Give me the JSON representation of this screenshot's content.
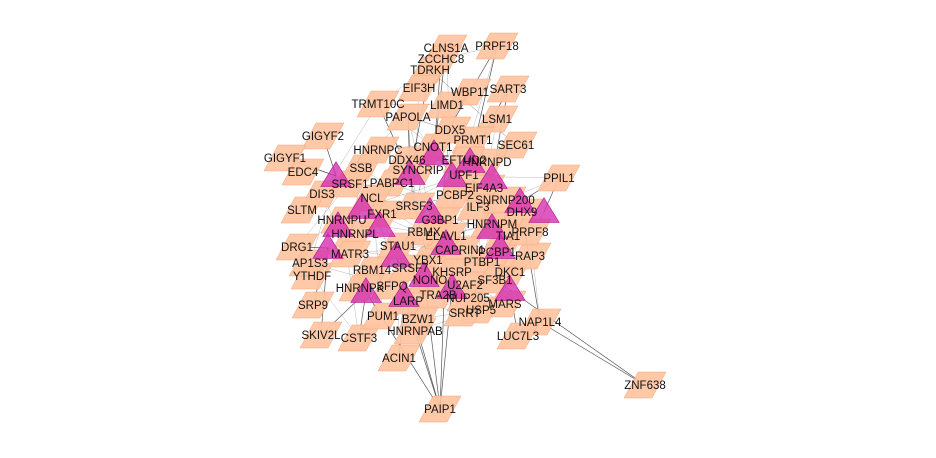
{
  "network": {
    "colors": {
      "edge": "#3a3a3a",
      "node_fill": "#ffc3a0",
      "node_fill_dark": "#f4a67c",
      "hub_fill": "#d52cb0",
      "hub_fill_dark": "#b0168e",
      "label": "#111111"
    },
    "nodes": [
      {
        "id": "CLNS1A",
        "label": "CLNS1A",
        "shape": "parallelogram"
      },
      {
        "id": "PRPF18",
        "label": "PRPF18",
        "shape": "parallelogram"
      },
      {
        "id": "ZCCHC8",
        "label": "ZCCHC8",
        "shape": "parallelogram"
      },
      {
        "id": "TDRKH",
        "label": "TDRKH",
        "shape": "parallelogram"
      },
      {
        "id": "SART3",
        "label": "SART3",
        "shape": "parallelogram"
      },
      {
        "id": "EIF3H",
        "label": "EIF3H",
        "shape": "parallelogram"
      },
      {
        "id": "WBP11",
        "label": "WBP11",
        "shape": "parallelogram"
      },
      {
        "id": "LIMD1",
        "label": "LIMD1",
        "shape": "parallelogram"
      },
      {
        "id": "TRMT10C",
        "label": "TRMT10C",
        "shape": "parallelogram"
      },
      {
        "id": "PAPOLA",
        "label": "PAPOLA",
        "shape": "parallelogram"
      },
      {
        "id": "LSM1",
        "label": "LSM1",
        "shape": "parallelogram"
      },
      {
        "id": "DDX46",
        "label": "DDX46",
        "shape": "parallelogram"
      },
      {
        "id": "GIGYF2",
        "label": "GIGYF2",
        "shape": "parallelogram"
      },
      {
        "id": "GIGYF1",
        "label": "GIGYF1",
        "shape": "parallelogram"
      },
      {
        "id": "DIS3",
        "label": "DIS3",
        "shape": "parallelogram"
      },
      {
        "id": "PPIL1",
        "label": "PPIL1",
        "shape": "parallelogram"
      },
      {
        "id": "DRG1",
        "label": "DRG1",
        "shape": "parallelogram"
      },
      {
        "id": "SRP9",
        "label": "SRP9",
        "shape": "parallelogram"
      },
      {
        "id": "SKIV2L",
        "label": "SKIV2L",
        "shape": "parallelogram"
      },
      {
        "id": "CSTF3",
        "label": "CSTF3",
        "shape": "parallelogram"
      },
      {
        "id": "ACIN1",
        "label": "ACIN1",
        "shape": "parallelogram"
      },
      {
        "id": "NAP1L4",
        "label": "NAP1L4",
        "shape": "parallelogram"
      },
      {
        "id": "LUC7L3",
        "label": "LUC7L3",
        "shape": "parallelogram"
      },
      {
        "id": "MARS",
        "label": "MARS",
        "shape": "parallelogram"
      },
      {
        "id": "USP5",
        "label": "USP5",
        "shape": "parallelogram"
      },
      {
        "id": "DKC1",
        "label": "DKC1",
        "shape": "parallelogram"
      },
      {
        "id": "PUM1",
        "label": "PUM1",
        "shape": "parallelogram"
      },
      {
        "id": "HNRNPAB",
        "label": "HNRNPAB",
        "shape": "parallelogram"
      },
      {
        "id": "SRRT",
        "label": "SRRT",
        "shape": "parallelogram"
      },
      {
        "id": "PAIP1",
        "label": "PAIP1",
        "shape": "parallelogram"
      },
      {
        "id": "ZNF638",
        "label": "ZNF638",
        "shape": "parallelogram"
      },
      {
        "id": "YTHDF",
        "label": "YTHDF",
        "shape": "parallelogram"
      },
      {
        "id": "NUP205",
        "label": "NUP205",
        "shape": "parallelogram"
      },
      {
        "id": "RAP3",
        "label": "RAP3",
        "shape": "parallelogram"
      },
      {
        "id": "HNRNPL",
        "label": "HNRNPL",
        "shape": "parallelogram"
      },
      {
        "id": "BZW1",
        "label": "BZW1",
        "shape": "parallelogram"
      },
      {
        "id": "LARP",
        "label": "LARP",
        "shape": "parallelogram"
      },
      {
        "id": "SLTM",
        "label": "SLTM",
        "shape": "parallelogram"
      },
      {
        "id": "EDC4",
        "label": "EDC4",
        "shape": "parallelogram"
      },
      {
        "id": "AP1S3",
        "label": "AP1S3",
        "shape": "parallelogram"
      },
      {
        "id": "SEC61",
        "label": "SEC61",
        "shape": "parallelogram"
      },
      {
        "id": "HNRNPD",
        "label": "HNRNPD",
        "shape": "parallelogram"
      },
      {
        "id": "UPF1",
        "label": "UPF1",
        "shape": "parallelogram"
      },
      {
        "id": "HNRNPM",
        "label": "HNRNPM",
        "shape": "parallelogram"
      },
      {
        "id": "PRMT1",
        "label": "PRMT1",
        "shape": "parallelogram"
      },
      {
        "id": "CNOT1",
        "label": "CNOT1",
        "shape": "parallelogram"
      },
      {
        "id": "DDX5",
        "label": "DDX5",
        "shape": "parallelogram"
      },
      {
        "id": "EIF4A3",
        "label": "EIF4A3",
        "shape": "parallelogram"
      },
      {
        "id": "SSB",
        "label": "SSB",
        "shape": "parallelogram"
      },
      {
        "id": "PABPC1",
        "label": "PABPC1",
        "shape": "parallelogram"
      },
      {
        "id": "NCL",
        "label": "NCL",
        "shape": "parallelogram"
      },
      {
        "id": "SRSF3",
        "label": "SRSF3",
        "shape": "parallelogram"
      },
      {
        "id": "G3BP1",
        "label": "G3BP1",
        "shape": "parallelogram"
      },
      {
        "id": "FXR1",
        "label": "FXR1",
        "shape": "parallelogram"
      },
      {
        "id": "STAU1",
        "label": "STAU1",
        "shape": "parallelogram"
      },
      {
        "id": "YBX1",
        "label": "YBX1",
        "shape": "parallelogram"
      },
      {
        "id": "CAPRIN1",
        "label": "CAPRIN1",
        "shape": "parallelogram"
      },
      {
        "id": "ELAVL1",
        "label": "ELAVL1",
        "shape": "parallelogram"
      },
      {
        "id": "TIA1",
        "label": "TIA1",
        "shape": "parallelogram"
      },
      {
        "id": "DHX9",
        "label": "DHX9",
        "shape": "parallelogram"
      },
      {
        "id": "ILF3",
        "label": "ILF3",
        "shape": "parallelogram"
      },
      {
        "id": "MATR3",
        "label": "MATR3",
        "shape": "parallelogram"
      },
      {
        "id": "RBM14",
        "label": "RBM14",
        "shape": "parallelogram"
      },
      {
        "id": "SFPQ",
        "label": "SFPQ",
        "shape": "parallelogram"
      },
      {
        "id": "NONO",
        "label": "NONO",
        "shape": "parallelogram"
      },
      {
        "id": "KHSRP",
        "label": "KHSRP",
        "shape": "parallelogram"
      },
      {
        "id": "PTBP1",
        "label": "PTBP1",
        "shape": "parallelogram"
      },
      {
        "id": "HNRNPK",
        "label": "HNRNPK",
        "shape": "parallelogram"
      },
      {
        "id": "HNRNPU",
        "label": "HNRNPU",
        "shape": "parallelogram"
      },
      {
        "id": "HNRNPC",
        "label": "HNRNPC",
        "shape": "parallelogram"
      },
      {
        "id": "SYNCRIP",
        "label": "SYNCRIP",
        "shape": "parallelogram"
      },
      {
        "id": "PCBP2",
        "label": "PCBP2",
        "shape": "parallelogram"
      },
      {
        "id": "PCBP1",
        "label": "PCBP1",
        "shape": "parallelogram"
      },
      {
        "id": "RBMX",
        "label": "RBMX",
        "shape": "parallelogram"
      },
      {
        "id": "SRSF1",
        "label": "SRSF1",
        "shape": "parallelogram"
      },
      {
        "id": "SRSF7",
        "label": "SRSF7",
        "shape": "parallelogram"
      },
      {
        "id": "TRA2B",
        "label": "TRA2B",
        "shape": "parallelogram"
      },
      {
        "id": "U2AF2",
        "label": "U2AF2",
        "shape": "parallelogram"
      },
      {
        "id": "SF3B1",
        "label": "SF3B1",
        "shape": "parallelogram"
      },
      {
        "id": "PRPF8",
        "label": "PRPF8",
        "shape": "parallelogram"
      },
      {
        "id": "SNRNP200",
        "label": "SNRNP200",
        "shape": "parallelogram"
      },
      {
        "id": "EFTUD2",
        "label": "EFTUD2",
        "shape": "parallelogram"
      },
      {
        "id": "HUB1",
        "label": "",
        "shape": "triangle"
      },
      {
        "id": "HUB2",
        "label": "",
        "shape": "triangle"
      },
      {
        "id": "HUB3",
        "label": "",
        "shape": "triangle"
      },
      {
        "id": "HUB4",
        "label": "",
        "shape": "triangle"
      },
      {
        "id": "HUB5",
        "label": "",
        "shape": "triangle"
      },
      {
        "id": "HUB6",
        "label": "",
        "shape": "triangle"
      },
      {
        "id": "HUB7",
        "label": "",
        "shape": "triangle"
      },
      {
        "id": "HUB8",
        "label": "",
        "shape": "triangle"
      },
      {
        "id": "HUB9",
        "label": "",
        "shape": "triangle"
      },
      {
        "id": "HUB10",
        "label": "",
        "shape": "triangle"
      },
      {
        "id": "HUB11",
        "label": "",
        "shape": "triangle"
      },
      {
        "id": "HUB12",
        "label": "",
        "shape": "triangle"
      },
      {
        "id": "HUB13",
        "label": "",
        "shape": "triangle"
      },
      {
        "id": "HUB14",
        "label": "",
        "shape": "triangle"
      },
      {
        "id": "HUB15",
        "label": "",
        "shape": "triangle"
      },
      {
        "id": "HUB16",
        "label": "",
        "shape": "triangle"
      },
      {
        "id": "HUB17",
        "label": "",
        "shape": "triangle"
      },
      {
        "id": "HUB18",
        "label": "",
        "shape": "triangle"
      },
      {
        "id": "HUB19",
        "label": "",
        "shape": "triangle"
      },
      {
        "id": "HUB20",
        "label": "",
        "shape": "triangle"
      },
      {
        "id": "HUB21",
        "label": "",
        "shape": "triangle"
      },
      {
        "id": "HUB22",
        "label": "",
        "shape": "triangle"
      }
    ],
    "edges": [
      [
        "PRPF18",
        "HUB3"
      ],
      [
        "PRPF18",
        "HUB5"
      ],
      [
        "SART3",
        "HUB5"
      ],
      [
        "SART3",
        "HUB7"
      ],
      [
        "CLNS1A",
        "HUB3"
      ],
      [
        "ZCCHC8",
        "HUB3"
      ],
      [
        "TDRKH",
        "HUB4"
      ],
      [
        "PAIP1",
        "HUB10"
      ],
      [
        "PAIP1",
        "HUB11"
      ],
      [
        "PAIP1",
        "HUB12"
      ],
      [
        "PAIP1",
        "HUB13"
      ],
      [
        "PAIP1",
        "HUB19"
      ],
      [
        "PAIP1",
        "HUB18"
      ],
      [
        "ZNF638",
        "HUB16"
      ],
      [
        "ZNF638",
        "NAP1L4"
      ],
      [
        "SKIV2L",
        "HUB9"
      ],
      [
        "SKIV2L",
        "HUB10"
      ],
      [
        "CSTF3",
        "HUB10"
      ],
      [
        "ACIN1",
        "HUB11"
      ],
      [
        "LUC7L3",
        "HUB16"
      ],
      [
        "NAP1L4",
        "HUB15"
      ],
      [
        "DRG1",
        "HUB9"
      ],
      [
        "SRP9",
        "HUB9"
      ],
      [
        "GIGYF1",
        "HUB1"
      ],
      [
        "GIGYF2",
        "HUB1"
      ],
      [
        "PPIL1",
        "HUB17"
      ],
      [
        "PPIL1",
        "HUB15"
      ],
      [
        "TRMT10C",
        "HUB4"
      ],
      [
        "PAPOLA",
        "HUB4"
      ],
      [
        "LSM1",
        "HUB6"
      ],
      [
        "DDX46",
        "HUB4"
      ]
    ]
  }
}
